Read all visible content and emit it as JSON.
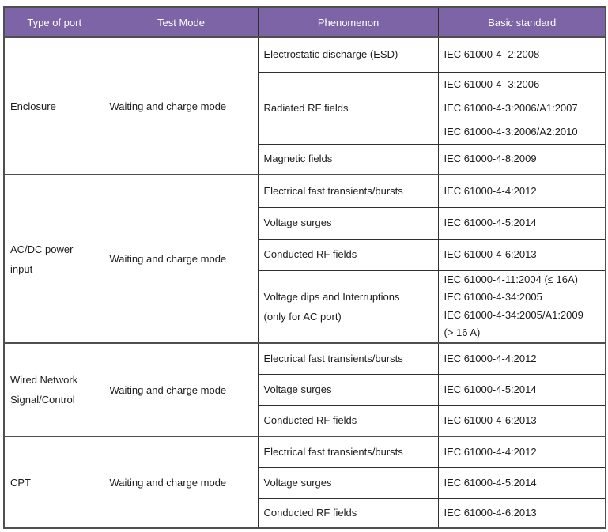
{
  "table": {
    "columns": [
      {
        "label": "Type of port"
      },
      {
        "label": "Test Mode"
      },
      {
        "label": "Phenomenon"
      },
      {
        "label": "Basic standard"
      }
    ],
    "groups": [
      {
        "port_lines": [
          "Enclosure"
        ],
        "test_mode": "Waiting and charge mode",
        "rows": [
          {
            "phenomenon_lines": [
              "Electrostatic discharge (ESD)"
            ],
            "standard_lines": [
              "IEC 61000-4- 2:2008"
            ]
          },
          {
            "phenomenon_lines": [
              "Radiated RF fields"
            ],
            "standard_lines": [
              "IEC 61000-4- 3:2006",
              "IEC 61000-4-3:2006/A1:2007",
              "IEC 61000-4-3:2006/A2:2010"
            ]
          },
          {
            "phenomenon_lines": [
              "Magnetic fields"
            ],
            "standard_lines": [
              "IEC 61000-4-8:2009"
            ]
          }
        ]
      },
      {
        "port_lines": [
          "AC/DC power",
          "input"
        ],
        "test_mode": "Waiting and charge mode",
        "rows": [
          {
            "phenomenon_lines": [
              "Electrical fast transients/bursts"
            ],
            "standard_lines": [
              "IEC 61000-4-4:2012"
            ]
          },
          {
            "phenomenon_lines": [
              "Voltage surges"
            ],
            "standard_lines": [
              "IEC 61000-4-5:2014"
            ]
          },
          {
            "phenomenon_lines": [
              "Conducted RF fields"
            ],
            "standard_lines": [
              "IEC 61000-4-6:2013"
            ]
          },
          {
            "phenomenon_lines": [
              "Voltage dips and Interruptions",
              "(only for AC port)"
            ],
            "standard_lines": [
              "IEC 61000-4-11:2004 (≤ 16A)",
              "IEC 61000-4-34:2005",
              "IEC 61000-4-34:2005/A1:2009",
              "(> 16 A)"
            ]
          }
        ]
      },
      {
        "port_lines": [
          "Wired Network",
          "Signal/Control"
        ],
        "test_mode": "Waiting and charge mode",
        "rows": [
          {
            "phenomenon_lines": [
              "Electrical fast transients/bursts"
            ],
            "standard_lines": [
              "IEC 61000-4-4:2012"
            ]
          },
          {
            "phenomenon_lines": [
              "Voltage surges"
            ],
            "standard_lines": [
              "IEC 61000-4-5:2014"
            ]
          },
          {
            "phenomenon_lines": [
              "Conducted RF fields"
            ],
            "standard_lines": [
              "IEC 61000-4-6:2013"
            ]
          }
        ]
      },
      {
        "port_lines": [
          "CPT"
        ],
        "test_mode": "Waiting and charge mode",
        "rows": [
          {
            "phenomenon_lines": [
              "Electrical fast transients/bursts"
            ],
            "standard_lines": [
              "IEC 61000-4-4:2012"
            ]
          },
          {
            "phenomenon_lines": [
              "Voltage surges"
            ],
            "standard_lines": [
              "IEC 61000-4-5:2014"
            ]
          },
          {
            "phenomenon_lines": [
              "Conducted RF fields"
            ],
            "standard_lines": [
              "IEC 61000-4-6:2013"
            ]
          }
        ]
      }
    ]
  },
  "colors": {
    "header_bg": "#7c64a6",
    "header_text": "#ffffff",
    "grid_line": "#2f2f2f",
    "heavy_line": "#4f4f4f",
    "body_text": "#1c1c1c",
    "page_bg": "#ffffff"
  }
}
